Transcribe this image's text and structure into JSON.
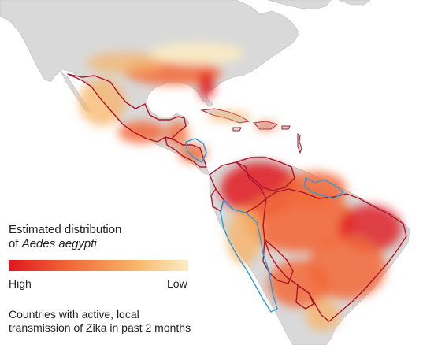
{
  "legend": {
    "title_line1": "Estimated distribution",
    "title_line2_prefix": "of ",
    "species": "Aedes aegypti",
    "high_label": "High",
    "low_label": "Low",
    "gradient_colors": [
      "#e0161f",
      "#f36a3a",
      "#f7b46a",
      "#fcecc4"
    ]
  },
  "note": {
    "line1": "Countries with active, local",
    "line2": "transmission of Zika in past 2 months"
  },
  "colors": {
    "water": "#ffffff",
    "land": "#d9d9d9",
    "border_zika": "#b0142a",
    "border_other": "#2aa0d8",
    "high": "#e0161f",
    "low": "#fcecc4"
  }
}
